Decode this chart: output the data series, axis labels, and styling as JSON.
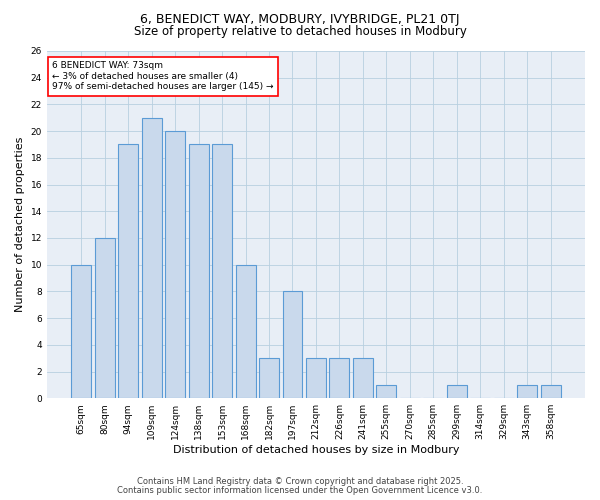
{
  "title1": "6, BENEDICT WAY, MODBURY, IVYBRIDGE, PL21 0TJ",
  "title2": "Size of property relative to detached houses in Modbury",
  "xlabel": "Distribution of detached houses by size in Modbury",
  "ylabel": "Number of detached properties",
  "categories": [
    "65sqm",
    "80sqm",
    "94sqm",
    "109sqm",
    "124sqm",
    "138sqm",
    "153sqm",
    "168sqm",
    "182sqm",
    "197sqm",
    "212sqm",
    "226sqm",
    "241sqm",
    "255sqm",
    "270sqm",
    "285sqm",
    "299sqm",
    "314sqm",
    "329sqm",
    "343sqm",
    "358sqm"
  ],
  "values": [
    10,
    12,
    19,
    21,
    20,
    19,
    19,
    10,
    3,
    8,
    3,
    3,
    3,
    1,
    0,
    0,
    1,
    0,
    0,
    1,
    1
  ],
  "bar_color": "#c9d9ec",
  "bar_edge_color": "#5b9bd5",
  "annotation_line1": "6 BENEDICT WAY: 73sqm",
  "annotation_line2": "← 3% of detached houses are smaller (4)",
  "annotation_line3": "97% of semi-detached houses are larger (145) →",
  "annotation_box_color": "white",
  "annotation_box_edge_color": "red",
  "grid_color": "#b8cfe0",
  "background_color": "#e8eef6",
  "ylim": [
    0,
    26
  ],
  "yticks": [
    0,
    2,
    4,
    6,
    8,
    10,
    12,
    14,
    16,
    18,
    20,
    22,
    24,
    26
  ],
  "footer1": "Contains HM Land Registry data © Crown copyright and database right 2025.",
  "footer2": "Contains public sector information licensed under the Open Government Licence v3.0.",
  "title_fontsize": 9,
  "subtitle_fontsize": 8.5,
  "axis_label_fontsize": 8,
  "tick_fontsize": 6.5,
  "annotation_fontsize": 6.5,
  "footer_fontsize": 6
}
